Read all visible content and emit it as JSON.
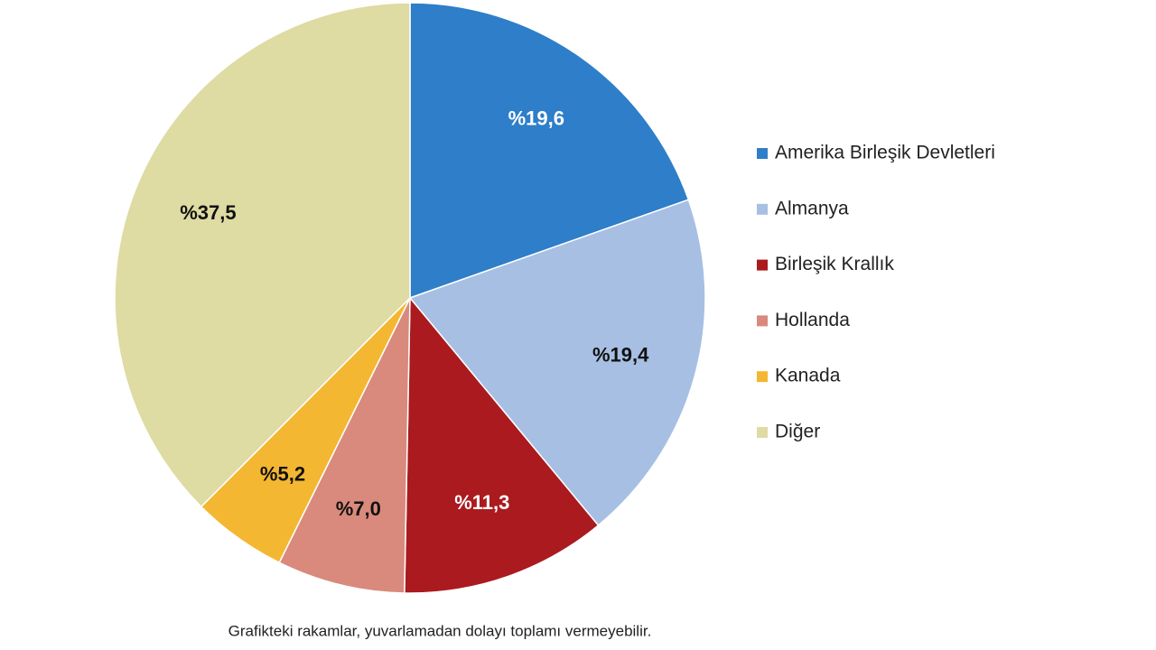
{
  "chart_data": {
    "type": "pie",
    "categories": [
      "Amerika Birleşik Devletleri",
      "Almanya",
      "Birleşik Krallık",
      "Hollanda",
      "Kanada",
      "Diğer"
    ],
    "values": [
      19.6,
      19.4,
      11.3,
      7.0,
      5.2,
      37.5
    ],
    "value_labels": [
      "%19,6",
      "%19,4",
      "%11,3",
      "%7,0",
      "%5,2",
      "%37,5"
    ],
    "colors": [
      "#2e7ec9",
      "#a7bfe3",
      "#aa1a1e",
      "#d98a7c",
      "#f4b731",
      "#dedba3"
    ],
    "legend": "right",
    "note": "Grafikteki rakamlar, yuvarlamadan dolayı toplamı vermeyebilir."
  }
}
